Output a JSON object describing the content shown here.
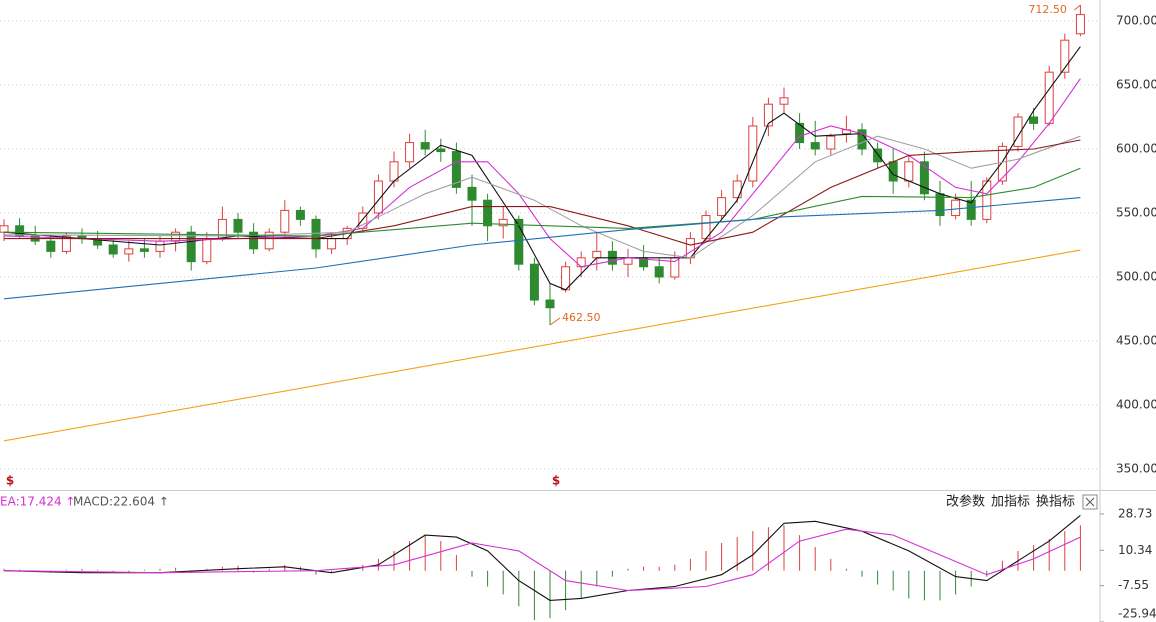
{
  "chart_data": [
    {
      "type": "candlestick",
      "open": [
        535,
        540,
        532,
        528,
        520,
        532,
        530,
        525,
        518,
        522,
        520,
        528,
        535,
        512,
        530,
        545,
        535,
        522,
        535,
        552,
        545,
        522,
        530,
        538,
        550,
        575,
        590,
        605,
        600,
        598,
        570,
        560,
        540,
        545,
        510,
        482,
        490,
        508,
        515,
        520,
        510,
        515,
        508,
        500,
        515,
        530,
        548,
        562,
        575,
        618,
        635,
        620,
        605,
        600,
        612,
        615,
        600,
        590,
        575,
        590,
        565,
        548,
        560,
        545,
        575,
        602,
        625,
        620,
        660,
        690
      ],
      "high": [
        545,
        546,
        540,
        532,
        535,
        538,
        536,
        530,
        528,
        530,
        532,
        538,
        540,
        535,
        555,
        550,
        542,
        538,
        560,
        555,
        548,
        535,
        540,
        555,
        580,
        598,
        612,
        615,
        608,
        605,
        580,
        565,
        555,
        548,
        515,
        495,
        512,
        520,
        535,
        528,
        522,
        525,
        515,
        520,
        535,
        552,
        568,
        580,
        625,
        640,
        648,
        628,
        622,
        612,
        626,
        620,
        605,
        600,
        595,
        598,
        575,
        565,
        575,
        578,
        605,
        628,
        632,
        665,
        690,
        712.5
      ],
      "low": [
        528,
        530,
        525,
        515,
        518,
        526,
        522,
        515,
        512,
        515,
        515,
        520,
        505,
        510,
        528,
        530,
        518,
        520,
        530,
        540,
        515,
        518,
        525,
        535,
        545,
        570,
        585,
        595,
        590,
        565,
        540,
        528,
        530,
        505,
        478,
        462.5,
        488,
        500,
        505,
        505,
        500,
        505,
        495,
        498,
        510,
        528,
        545,
        558,
        570,
        610,
        628,
        600,
        595,
        595,
        605,
        595,
        585,
        565,
        570,
        560,
        540,
        545,
        540,
        542,
        572,
        598,
        615,
        618,
        655,
        688
      ],
      "close": [
        540,
        532,
        528,
        520,
        532,
        530,
        525,
        518,
        522,
        520,
        528,
        535,
        512,
        530,
        545,
        535,
        522,
        535,
        552,
        545,
        522,
        530,
        538,
        550,
        575,
        590,
        605,
        600,
        598,
        570,
        560,
        540,
        545,
        510,
        482,
        476,
        508,
        515,
        520,
        510,
        515,
        508,
        500,
        515,
        530,
        548,
        562,
        575,
        618,
        635,
        640,
        605,
        600,
        610,
        615,
        600,
        590,
        575,
        590,
        565,
        548,
        560,
        545,
        575,
        602,
        625,
        620,
        660,
        685,
        705
      ],
      "up_color": "#d9413c",
      "down_color": "#2f8a2f",
      "series": [
        {
          "color": "#111111",
          "x": [
            0,
            5,
            10,
            15,
            20,
            22,
            25,
            28,
            30,
            33,
            35,
            36,
            38,
            42,
            44,
            47,
            49,
            50,
            52,
            55,
            57,
            60,
            62,
            64,
            66,
            69
          ],
          "values": [
            535,
            530,
            525,
            532,
            530,
            530,
            575,
            603,
            595,
            540,
            495,
            490,
            515,
            515,
            515,
            560,
            620,
            628,
            610,
            612,
            580,
            565,
            558,
            590,
            630,
            680
          ]
        },
        {
          "color": "#d62fd6",
          "x": [
            0,
            10,
            20,
            23,
            26,
            29,
            31,
            33,
            35,
            37,
            40,
            43,
            46,
            49,
            51,
            53,
            55,
            58,
            61,
            63,
            65,
            67,
            69
          ],
          "values": [
            532,
            528,
            532,
            538,
            570,
            590,
            590,
            565,
            530,
            508,
            515,
            512,
            535,
            580,
            610,
            618,
            612,
            595,
            570,
            565,
            590,
            620,
            655
          ]
        },
        {
          "color": "#a0a0a8",
          "x": [
            0,
            15,
            22,
            27,
            30,
            34,
            37,
            41,
            44,
            48,
            52,
            56,
            59,
            62,
            65,
            69
          ],
          "values": [
            533,
            532,
            535,
            565,
            578,
            560,
            540,
            520,
            515,
            548,
            590,
            610,
            600,
            585,
            592,
            610
          ]
        },
        {
          "color": "#8b1a1a",
          "x": [
            0,
            20,
            25,
            30,
            35,
            40,
            44,
            48,
            53,
            58,
            62,
            66,
            69
          ],
          "values": [
            530,
            530,
            540,
            555,
            555,
            540,
            525,
            535,
            570,
            595,
            598,
            600,
            607
          ]
        },
        {
          "color": "#2e8b2e",
          "x": [
            0,
            20,
            30,
            40,
            48,
            55,
            62,
            66,
            69
          ],
          "values": [
            535,
            532,
            542,
            538,
            545,
            563,
            562,
            570,
            585
          ]
        },
        {
          "color": "#1f6fb5",
          "x": [
            0,
            20,
            30,
            40,
            50,
            60,
            69
          ],
          "values": [
            483,
            507,
            525,
            537,
            547,
            552,
            562
          ]
        },
        {
          "color": "#f2a21b",
          "x": [
            0,
            69
          ],
          "values": [
            372,
            521
          ]
        }
      ],
      "annotations": [
        {
          "value": 712.5,
          "label": "712.50"
        },
        {
          "value": 462.5,
          "label": "462.50"
        }
      ],
      "ylim": [
        333.6,
        716.4
      ],
      "yticks": [
        {
          "value": 700,
          "label": "700.00"
        },
        {
          "value": 650,
          "label": "650.00"
        },
        {
          "value": 600,
          "label": "600.00"
        },
        {
          "value": 550,
          "label": "550.00"
        },
        {
          "value": 500,
          "label": "500.00"
        },
        {
          "value": 450,
          "label": "450.00"
        },
        {
          "value": 400,
          "label": "400.00"
        },
        {
          "value": 350,
          "label": "350.00"
        }
      ],
      "grid": true
    },
    {
      "type": "macd",
      "legend_labels": [
        "EA:17.424 ↑",
        "MACD:22.604 ↑"
      ],
      "buttons": [
        "改参数",
        "加指标",
        "换指标"
      ],
      "series": [
        {
          "color": "#111111",
          "x": [
            0,
            5,
            10,
            15,
            18,
            21,
            24,
            27,
            29,
            31,
            33,
            35,
            37,
            40,
            43,
            46,
            48,
            50,
            52,
            55,
            58,
            61,
            63,
            65,
            67,
            69
          ],
          "values": [
            0,
            -1,
            -1,
            1,
            2,
            -1,
            3,
            18,
            17,
            10,
            -5,
            -15,
            -14,
            -10,
            -8,
            -2,
            8,
            24,
            25,
            20,
            10,
            -3,
            -5,
            5,
            15,
            28
          ]
        },
        {
          "color": "#d62fd6",
          "x": [
            0,
            10,
            20,
            25,
            30,
            33,
            36,
            40,
            45,
            48,
            51,
            54,
            57,
            60,
            63,
            66,
            69
          ],
          "values": [
            0,
            -1,
            0,
            3,
            14,
            10,
            -5,
            -10,
            -8,
            -2,
            15,
            21,
            18,
            8,
            -2,
            6,
            17
          ]
        }
      ],
      "histogram": [
        1,
        0.5,
        -0.5,
        -1,
        0.5,
        1,
        0.5,
        -0.5,
        -1,
        0.5,
        1,
        1.5,
        -1,
        1,
        2,
        2.5,
        -1,
        1,
        3,
        2,
        -2,
        -1,
        1,
        3,
        6,
        10,
        15,
        18,
        15,
        8,
        -3,
        -8,
        -12,
        -18,
        -25,
        -24,
        -20,
        -14,
        -8,
        -3,
        1,
        2,
        2,
        3,
        6,
        10,
        14,
        17,
        20,
        22,
        23,
        18,
        12,
        6,
        1,
        -3,
        -7,
        -10,
        -14,
        -15,
        -15,
        -12,
        -8,
        -3,
        5,
        10,
        13,
        16,
        20,
        23
      ],
      "up_color": "#d9413c",
      "down_color": "#2f8a2f",
      "ylim": [
        -25.94,
        38.8
      ],
      "yticks": [
        28.73,
        10.34,
        -7.55,
        -25.94
      ]
    }
  ]
}
